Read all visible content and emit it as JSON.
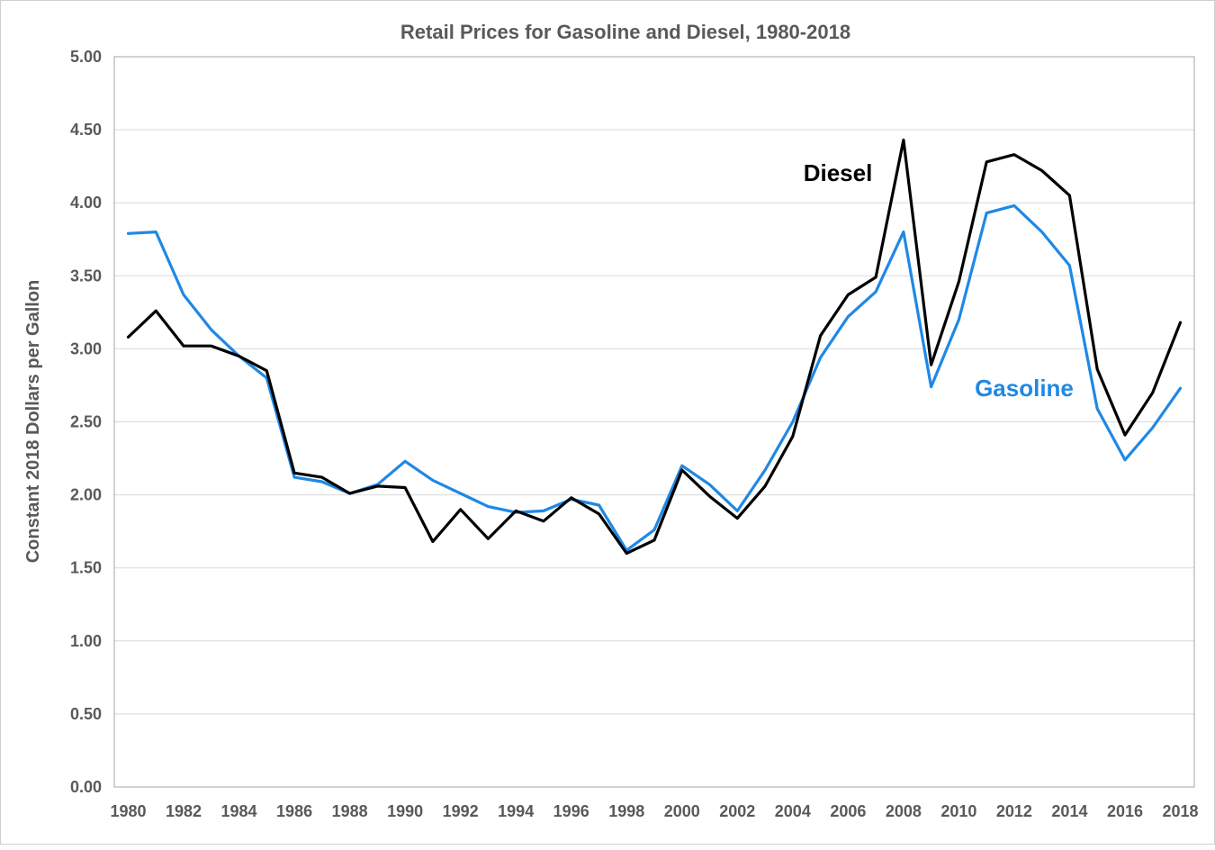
{
  "chart_data": {
    "type": "line",
    "title": "Retail Prices for Gasoline and Diesel, 1980-2018",
    "xlabel": "",
    "ylabel": "Constant 2018 Dollars per Gallon",
    "ylim": [
      0,
      5
    ],
    "y_ticks": [
      "0.00",
      "0.50",
      "1.00",
      "1.50",
      "2.00",
      "2.50",
      "3.00",
      "3.50",
      "4.00",
      "4.50",
      "5.00"
    ],
    "x_ticks": [
      "1980",
      "1982",
      "1984",
      "1986",
      "1988",
      "1990",
      "1992",
      "1994",
      "1996",
      "1998",
      "2000",
      "2002",
      "2004",
      "2006",
      "2008",
      "2010",
      "2012",
      "2014",
      "2016",
      "2018"
    ],
    "grid": true,
    "legend": "inline labels",
    "x": [
      1980,
      1981,
      1982,
      1983,
      1984,
      1985,
      1986,
      1987,
      1988,
      1989,
      1990,
      1991,
      1992,
      1993,
      1994,
      1995,
      1996,
      1997,
      1998,
      1999,
      2000,
      2001,
      2002,
      2003,
      2004,
      2005,
      2006,
      2007,
      2008,
      2009,
      2010,
      2011,
      2012,
      2013,
      2014,
      2015,
      2016,
      2017,
      2018
    ],
    "series": [
      {
        "name": "Diesel",
        "color": "#000000",
        "values": [
          3.08,
          3.26,
          3.02,
          3.02,
          2.95,
          2.85,
          2.15,
          2.12,
          2.01,
          2.06,
          2.05,
          1.68,
          1.9,
          1.7,
          1.89,
          1.82,
          1.98,
          1.87,
          1.6,
          1.69,
          2.17,
          1.99,
          1.84,
          2.06,
          2.4,
          3.09,
          3.37,
          3.49,
          4.43,
          2.89,
          3.46,
          4.28,
          4.33,
          4.22,
          4.05,
          2.86,
          2.41,
          2.7,
          3.18
        ]
      },
      {
        "name": "Gasoline",
        "color": "#1f88e5",
        "values": [
          3.79,
          3.8,
          3.37,
          3.13,
          2.95,
          2.8,
          2.12,
          2.09,
          2.01,
          2.07,
          2.23,
          2.1,
          2.01,
          1.92,
          1.88,
          1.89,
          1.97,
          1.93,
          1.62,
          1.76,
          2.2,
          2.07,
          1.89,
          2.17,
          2.5,
          2.94,
          3.22,
          3.39,
          3.8,
          2.74,
          3.2,
          3.93,
          3.98,
          3.8,
          3.57,
          2.59,
          2.24,
          2.46,
          2.73
        ]
      }
    ]
  }
}
